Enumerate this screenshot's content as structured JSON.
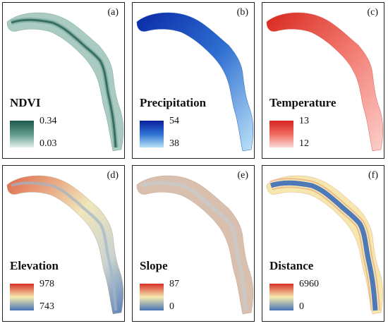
{
  "panels": [
    {
      "letter": "(a)",
      "title": "NDVI",
      "max": "0.34",
      "min": "0.03",
      "colors": [
        "#1e5a4b",
        "#5f9a8a",
        "#e4f0ec"
      ]
    },
    {
      "letter": "(b)",
      "title": "Precipitation",
      "max": "54",
      "min": "38",
      "colors": [
        "#0a1f9e",
        "#2d72d2",
        "#b7e0f6"
      ]
    },
    {
      "letter": "(c)",
      "title": "Temperature",
      "max": "13",
      "min": "12",
      "colors": [
        "#d7261e",
        "#ef6a60",
        "#fcd9d6"
      ]
    },
    {
      "letter": "(d)",
      "title": "Elevation",
      "max": "978",
      "min": "743",
      "colors": [
        "#d73027",
        "#f7e9b0",
        "#4575b4"
      ]
    },
    {
      "letter": "(e)",
      "title": "Slope",
      "max": "87",
      "min": "0",
      "colors": [
        "#d73027",
        "#f7e9b0",
        "#4575b4"
      ]
    },
    {
      "letter": "(f)",
      "title": "Distance",
      "max": "6960",
      "min": "0",
      "colors": [
        "#d73027",
        "#f7e9b0",
        "#4575b4"
      ]
    }
  ]
}
